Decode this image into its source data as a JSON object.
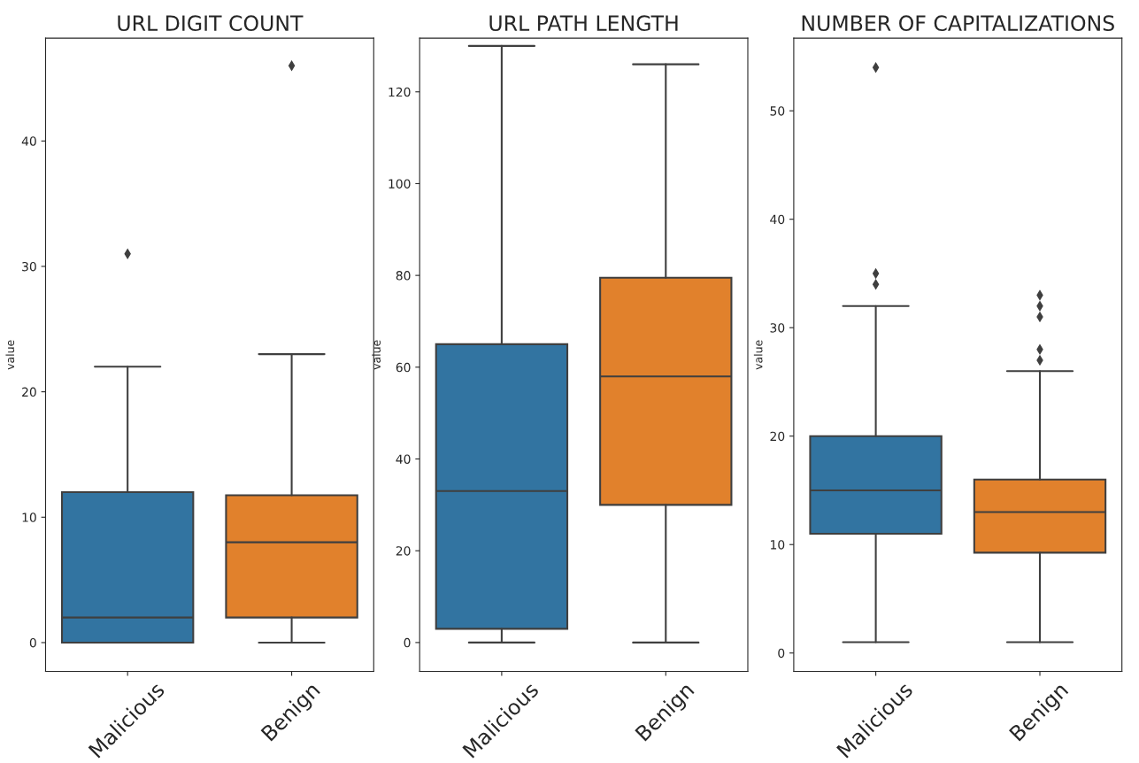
{
  "chart_data": [
    {
      "type": "box",
      "title": "URL DIGIT COUNT",
      "ylabel": "value",
      "categories": [
        "Malicious",
        "Benign"
      ],
      "colors": [
        "#3274a1",
        "#e1812c"
      ],
      "marker": "diamond",
      "ylim": [
        -2.3,
        48.2
      ],
      "yticks": [
        0,
        10,
        20,
        30,
        40
      ],
      "boxes": [
        {
          "low": 0,
          "q1": 0,
          "median": 2,
          "q3": 12,
          "high": 22,
          "outliers": [
            31
          ]
        },
        {
          "low": 0,
          "q1": 2,
          "median": 8,
          "q3": 11.75,
          "high": 23,
          "outliers": [
            46
          ]
        }
      ]
    },
    {
      "type": "box",
      "title": "URL PATH LENGTH",
      "ylabel": "value",
      "categories": [
        "Malicious",
        "Benign"
      ],
      "colors": [
        "#3274a1",
        "#e1812c"
      ],
      "marker": "diamond",
      "ylim": [
        -6.3,
        131.7
      ],
      "yticks": [
        0,
        20,
        40,
        60,
        80,
        100,
        120
      ],
      "boxes": [
        {
          "low": 0,
          "q1": 3,
          "median": 33,
          "q3": 65,
          "high": 130
        },
        {
          "low": 0,
          "q1": 30,
          "median": 58,
          "q3": 79.5,
          "high": 126
        }
      ]
    },
    {
      "type": "box",
      "title": "NUMBER OF CAPITALIZATIONS",
      "ylabel": "value",
      "categories": [
        "Malicious",
        "Benign"
      ],
      "colors": [
        "#3274a1",
        "#e1812c"
      ],
      "marker": "diamond",
      "ylim": [
        -1.7,
        56.7
      ],
      "yticks": [
        0,
        10,
        20,
        30,
        40,
        50
      ],
      "boxes": [
        {
          "low": 1,
          "q1": 11,
          "median": 15,
          "q3": 20,
          "high": 32,
          "outliers": [
            34,
            35,
            54
          ]
        },
        {
          "low": 1,
          "q1": 9.25,
          "median": 13,
          "q3": 16,
          "high": 26,
          "outliers": [
            27,
            28,
            31,
            32,
            33
          ]
        }
      ]
    }
  ]
}
